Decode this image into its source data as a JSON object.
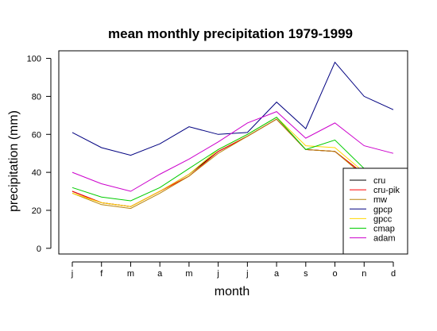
{
  "chart_data": {
    "type": "line",
    "title": "mean monthly precipitation 1979-1999",
    "xlabel": "month",
    "ylabel": "precipitation (mm)",
    "categories": [
      "j",
      "f",
      "m",
      "a",
      "m",
      "j",
      "j",
      "a",
      "s",
      "o",
      "n",
      "d"
    ],
    "yticks": [
      0,
      20,
      40,
      60,
      80,
      100
    ],
    "ylim": [
      -3,
      104
    ],
    "grid": false,
    "legend_position": "bottom-right",
    "series": [
      {
        "name": "cru",
        "color": "#000000",
        "values": [
          30,
          24,
          22,
          30,
          39,
          51,
          59,
          68,
          52,
          51,
          39,
          33
        ]
      },
      {
        "name": "cru-pik",
        "color": "#ff0000",
        "values": [
          30,
          24,
          22,
          30,
          38,
          51,
          59,
          68,
          52,
          51,
          39,
          33
        ]
      },
      {
        "name": "mw",
        "color": "#b8860b",
        "values": [
          29,
          23,
          21,
          29,
          38,
          50,
          59,
          68,
          52,
          51,
          38,
          32
        ]
      },
      {
        "name": "gpcp",
        "color": "#000080",
        "values": [
          61,
          53,
          49,
          55,
          64,
          60,
          61,
          77,
          63,
          98,
          80,
          73
        ]
      },
      {
        "name": "gpcc",
        "color": "#ffd700",
        "values": [
          29,
          24,
          22,
          30,
          39,
          52,
          60,
          69,
          54,
          53,
          40,
          34
        ]
      },
      {
        "name": "cmap",
        "color": "#00cc00",
        "values": [
          32,
          27,
          25,
          32,
          42,
          52,
          60,
          69,
          52,
          57,
          42,
          36
        ]
      },
      {
        "name": "adam",
        "color": "#cc00cc",
        "values": [
          40,
          34,
          30,
          39,
          47,
          56,
          66,
          72,
          58,
          66,
          54,
          50
        ]
      }
    ]
  }
}
